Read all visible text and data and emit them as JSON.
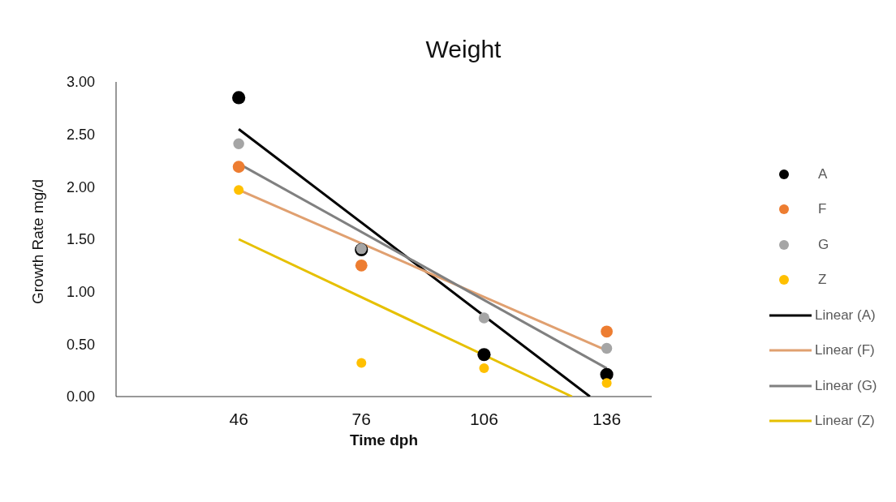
{
  "chart_data": {
    "type": "scatter",
    "title": "Weight",
    "xlabel": "Time dph",
    "ylabel": "Growth Rate mg/d",
    "xlim": [
      16,
      147
    ],
    "xticks": [
      46,
      76,
      106,
      136
    ],
    "ylim": [
      0,
      3
    ],
    "yticks": [
      {
        "value": 0,
        "label": "0.00"
      },
      {
        "value": 0.5,
        "label": "0.50"
      },
      {
        "value": 1,
        "label": "1.00"
      },
      {
        "value": 1.5,
        "label": "1.50"
      },
      {
        "value": 2,
        "label": "2.00"
      },
      {
        "value": 2.5,
        "label": "2.50"
      },
      {
        "value": 3,
        "label": "3.00"
      }
    ],
    "grid": false,
    "legend": "right",
    "marker": "circle",
    "x": [
      46,
      76,
      106,
      136
    ],
    "series": [
      {
        "name": "A",
        "color": "#000000",
        "values": [
          2.85,
          1.4,
          0.4,
          0.21
        ]
      },
      {
        "name": "F",
        "color": "#ed7d31",
        "values": [
          2.19,
          1.25,
          null,
          0.62
        ]
      },
      {
        "name": "G",
        "color": "#a5a5a5",
        "values": [
          2.41,
          1.41,
          0.75,
          0.46
        ]
      },
      {
        "name": "Z",
        "color": "#ffc000",
        "values": [
          1.97,
          0.32,
          0.27,
          0.13
        ]
      },
      {
        "name": "Linear (A)",
        "type": "line",
        "marker": "none",
        "color": "#000000",
        "x": [
          46,
          131.9
        ],
        "values": [
          2.55,
          0
        ]
      },
      {
        "name": "Linear (F)",
        "type": "line",
        "marker": "none",
        "color": "#e0a070",
        "x": [
          46,
          136
        ],
        "values": [
          1.97,
          0.44
        ]
      },
      {
        "name": "Linear (G)",
        "type": "line",
        "marker": "none",
        "color": "#808080",
        "x": [
          46,
          136
        ],
        "values": [
          2.22,
          0.27
        ]
      },
      {
        "name": "Linear (Z)",
        "type": "line",
        "marker": "none",
        "color": "#e6c000",
        "x": [
          46,
          127.5
        ],
        "values": [
          1.5,
          0
        ]
      }
    ]
  }
}
